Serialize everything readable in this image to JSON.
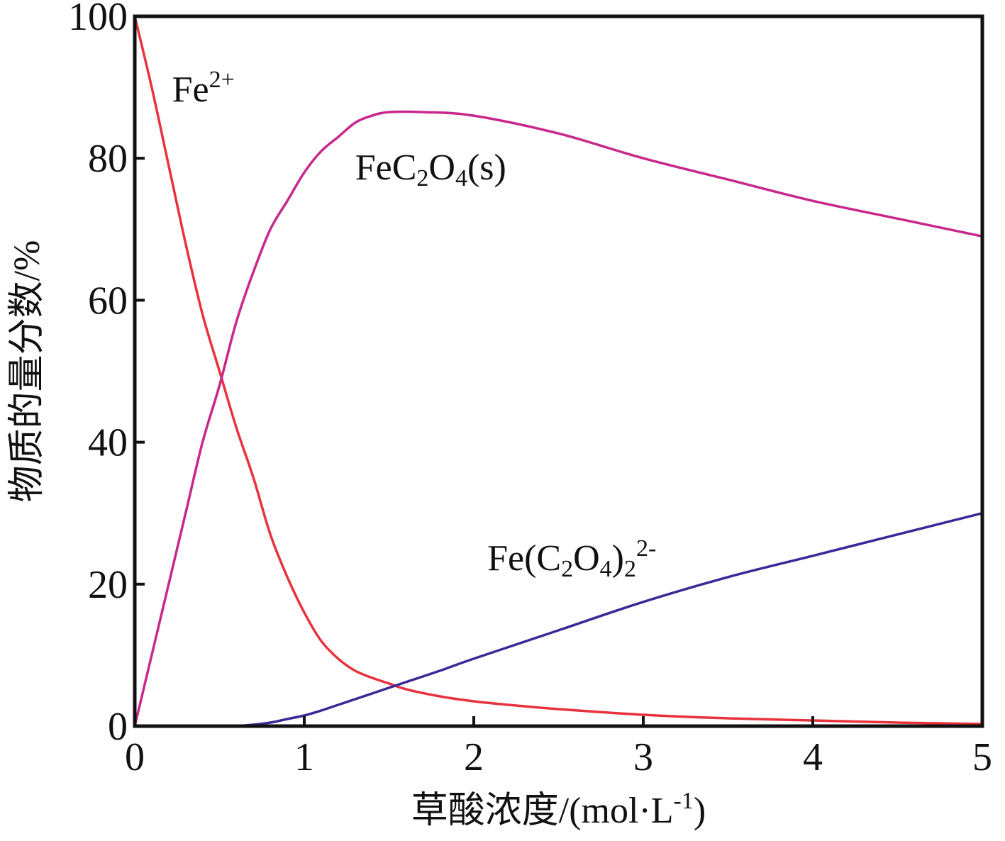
{
  "chart_data": {
    "type": "line",
    "xlabel": "草酸浓度/(mol·L",
    "xlabel_sup": "-1",
    "xlabel_end": ")",
    "ylabel": "物质的量分数/%",
    "xlim": [
      0,
      5
    ],
    "ylim": [
      0,
      100
    ],
    "x_ticks": [
      0,
      1,
      2,
      3,
      4,
      5
    ],
    "y_ticks": [
      0,
      20,
      40,
      60,
      80,
      100
    ],
    "x_tick_labels": [
      "0",
      "1",
      "2",
      "3",
      "4",
      "5"
    ],
    "y_tick_labels": [
      "0",
      "20",
      "40",
      "60",
      "80",
      "100"
    ],
    "grid": false,
    "legend": "none",
    "series": [
      {
        "name": "Fe2+",
        "label_parts": [
          [
            "Fe",
            "n"
          ],
          [
            "2+",
            "sup"
          ]
        ],
        "color": "#e8323c",
        "x": [
          0,
          0.1,
          0.2,
          0.3,
          0.4,
          0.5,
          0.6,
          0.7,
          0.8,
          0.9,
          1.0,
          1.1,
          1.2,
          1.3,
          1.4,
          1.5,
          1.6,
          1.8,
          2.0,
          2.25,
          2.5,
          3.0,
          3.5,
          4.0,
          4.5,
          5.0
        ],
        "y": [
          100,
          90,
          79,
          68,
          58,
          50,
          42,
          35,
          27,
          21,
          16,
          12,
          9.5,
          7.8,
          6.8,
          6.0,
          5.2,
          4.2,
          3.5,
          2.9,
          2.4,
          1.6,
          1.1,
          0.8,
          0.5,
          0.3
        ]
      },
      {
        "name": "FeC2O4(s)",
        "label_parts": [
          [
            "FeC",
            "n"
          ],
          [
            "2",
            "sub"
          ],
          [
            "O",
            "n"
          ],
          [
            "4",
            "sub"
          ],
          [
            "(s)",
            "n"
          ]
        ],
        "color": "#c8288c",
        "x": [
          0,
          0.1,
          0.2,
          0.3,
          0.4,
          0.5,
          0.6,
          0.7,
          0.8,
          0.9,
          1.0,
          1.1,
          1.2,
          1.3,
          1.4,
          1.5,
          1.7,
          2.0,
          2.5,
          3.0,
          3.5,
          4.0,
          4.5,
          5.0
        ],
        "y": [
          0,
          10,
          20,
          30,
          40,
          48,
          57,
          64,
          70,
          74,
          78,
          81,
          83,
          85,
          86,
          86.5,
          86.5,
          86,
          83.5,
          80,
          77,
          74,
          71.5,
          69
        ]
      },
      {
        "name": "Fe(C2O4)22-",
        "label_parts": [
          [
            "Fe(C",
            "n"
          ],
          [
            "2",
            "sub"
          ],
          [
            "O",
            "n"
          ],
          [
            "4",
            "sub"
          ],
          [
            ")",
            "n"
          ],
          [
            "2",
            "sub"
          ],
          [
            "2-",
            "sup"
          ]
        ],
        "color": "#3c2896",
        "x": [
          0.6,
          0.7,
          0.8,
          0.9,
          1.0,
          1.1,
          1.2,
          1.3,
          1.4,
          1.5,
          1.6,
          1.8,
          2.0,
          2.5,
          3.0,
          3.5,
          4.0,
          4.5,
          5.0
        ],
        "y": [
          0,
          0.2,
          0.5,
          1.0,
          1.5,
          2.2,
          3.0,
          3.8,
          4.6,
          5.4,
          6.2,
          7.8,
          9.5,
          13.5,
          17.5,
          21,
          24,
          27,
          30
        ]
      }
    ],
    "annotations": [
      {
        "series": 0,
        "x": 0.22,
        "y": 88,
        "anchor": "start"
      },
      {
        "series": 1,
        "x": 1.3,
        "y": 77,
        "anchor": "start"
      },
      {
        "series": 2,
        "x": 2.08,
        "y": 22,
        "anchor": "start"
      }
    ]
  }
}
